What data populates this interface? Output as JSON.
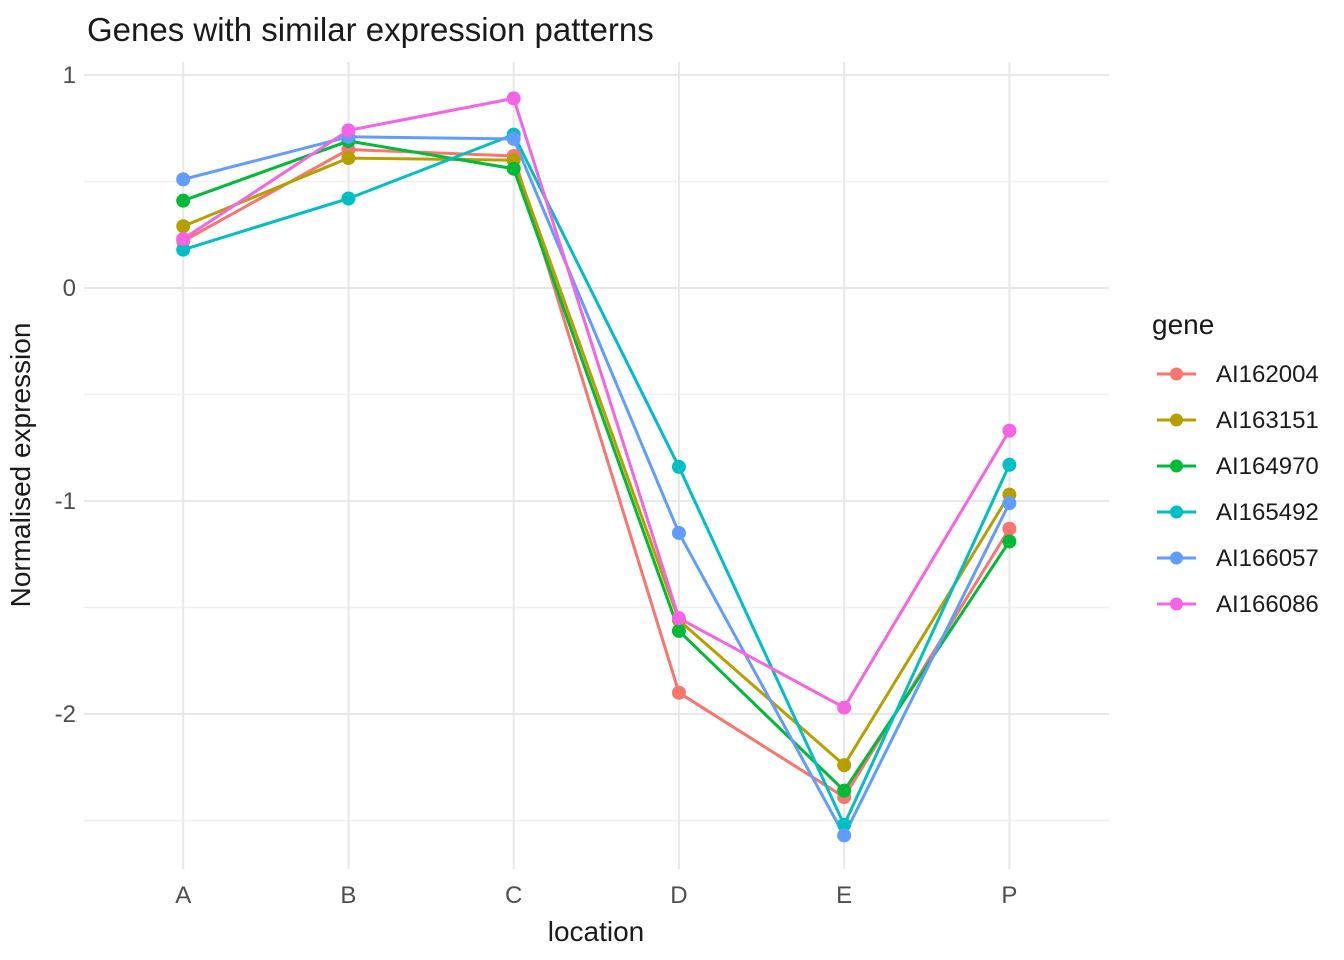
{
  "chart_data": {
    "type": "line",
    "title": "Genes with similar expression patterns",
    "xlabel": "location",
    "ylabel": "Normalised expression",
    "legend_title": "gene",
    "categories": [
      "A",
      "B",
      "C",
      "D",
      "E",
      "P"
    ],
    "yticks": [
      1,
      0,
      -1,
      -2
    ],
    "ytick_labels": [
      "1",
      "0",
      "-1",
      "-2"
    ],
    "yminor": [
      0.5,
      -0.5,
      -1.5,
      -2.5
    ],
    "ylim": [
      -2.73,
      1.06
    ],
    "grid": "major+minor, no axis lines, no tick marks",
    "legend_position": "right",
    "series": [
      {
        "name": "AI162004",
        "color": "#F8766D",
        "values": [
          0.22,
          0.65,
          0.62,
          -1.9,
          -2.39,
          -1.13
        ]
      },
      {
        "name": "AI163151",
        "color": "#B79F00",
        "values": [
          0.29,
          0.61,
          0.6,
          -1.56,
          -2.24,
          -0.97
        ]
      },
      {
        "name": "AI164970",
        "color": "#00BA38",
        "values": [
          0.41,
          0.69,
          0.56,
          -1.61,
          -2.36,
          -1.19
        ]
      },
      {
        "name": "AI165492",
        "color": "#00BFC4",
        "values": [
          0.18,
          0.42,
          0.72,
          -0.84,
          -2.52,
          -0.83
        ]
      },
      {
        "name": "AI166057",
        "color": "#619CFF",
        "values": [
          0.51,
          0.71,
          0.7,
          -1.15,
          -2.57,
          -1.01
        ]
      },
      {
        "name": "AI166086",
        "color": "#F564E3",
        "values": [
          0.23,
          0.74,
          0.89,
          -1.55,
          -1.97,
          -0.67
        ]
      }
    ],
    "colors": {
      "grid_major": "#e8e8e8",
      "grid_minor": "#f0f0f0",
      "tick_text": "#4d4d4d",
      "text": "#1a1a1a",
      "background": "#ffffff"
    }
  }
}
